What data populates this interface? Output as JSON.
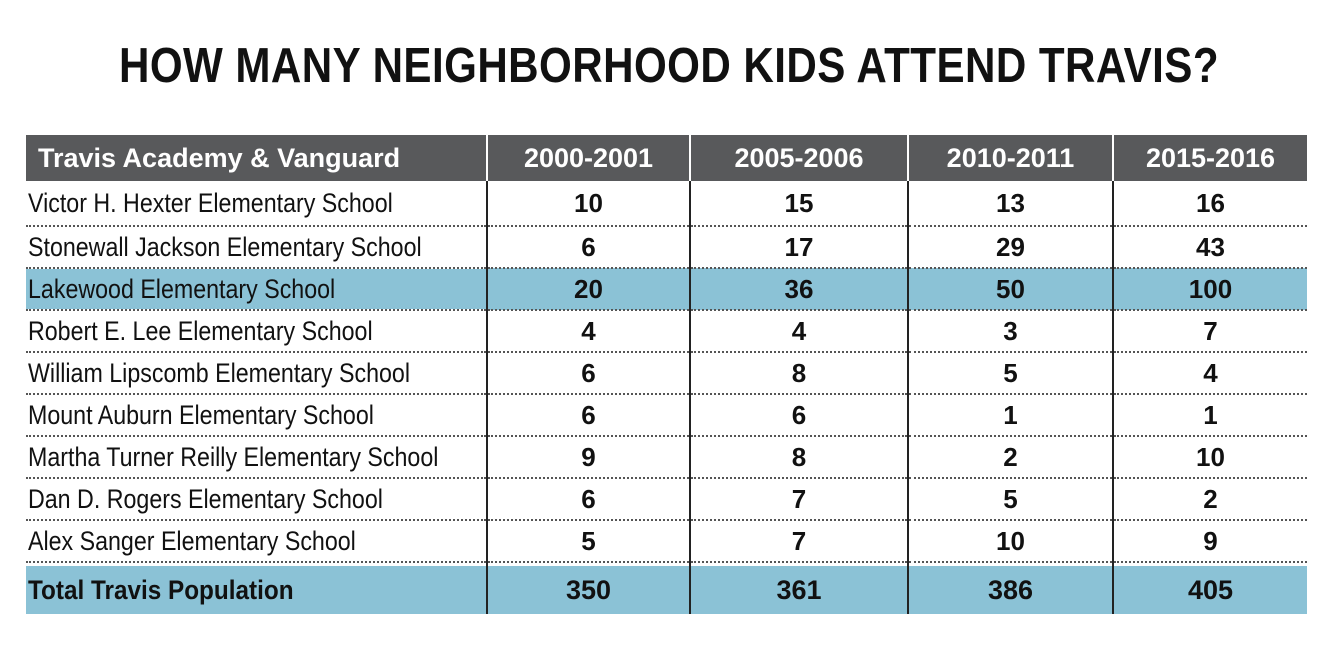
{
  "chart_data": {
    "type": "table",
    "title": "HOW MANY NEIGHBORHOOD KIDS ATTEND TRAVIS?",
    "columns": [
      "Travis Academy & Vanguard",
      "2000-2001",
      "2005-2006",
      "2010-2011",
      "2015-2016"
    ],
    "rows": [
      {
        "school": "Victor H. Hexter Elementary School",
        "values": [
          10,
          15,
          13,
          16
        ],
        "highlight": false
      },
      {
        "school": "Stonewall Jackson Elementary School",
        "values": [
          6,
          17,
          29,
          43
        ],
        "highlight": false
      },
      {
        "school": "Lakewood Elementary School",
        "values": [
          20,
          36,
          50,
          100
        ],
        "highlight": true
      },
      {
        "school": "Robert E. Lee Elementary School",
        "values": [
          4,
          4,
          3,
          7
        ],
        "highlight": false
      },
      {
        "school": "William Lipscomb Elementary School",
        "values": [
          6,
          8,
          5,
          4
        ],
        "highlight": false
      },
      {
        "school": "Mount Auburn Elementary School",
        "values": [
          6,
          6,
          1,
          1
        ],
        "highlight": false
      },
      {
        "school": "Martha Turner Reilly Elementary School",
        "values": [
          9,
          8,
          2,
          10
        ],
        "highlight": false
      },
      {
        "school": "Dan D. Rogers Elementary School",
        "values": [
          6,
          7,
          5,
          2
        ],
        "highlight": false
      },
      {
        "school": "Alex Sanger Elementary School",
        "values": [
          5,
          7,
          10,
          9
        ],
        "highlight": false
      }
    ],
    "total": {
      "label": "Total Travis Population",
      "values": [
        350,
        361,
        386,
        405
      ]
    }
  },
  "colors": {
    "header_bg": "#58595b",
    "highlight_bg": "#8bc2d6"
  }
}
